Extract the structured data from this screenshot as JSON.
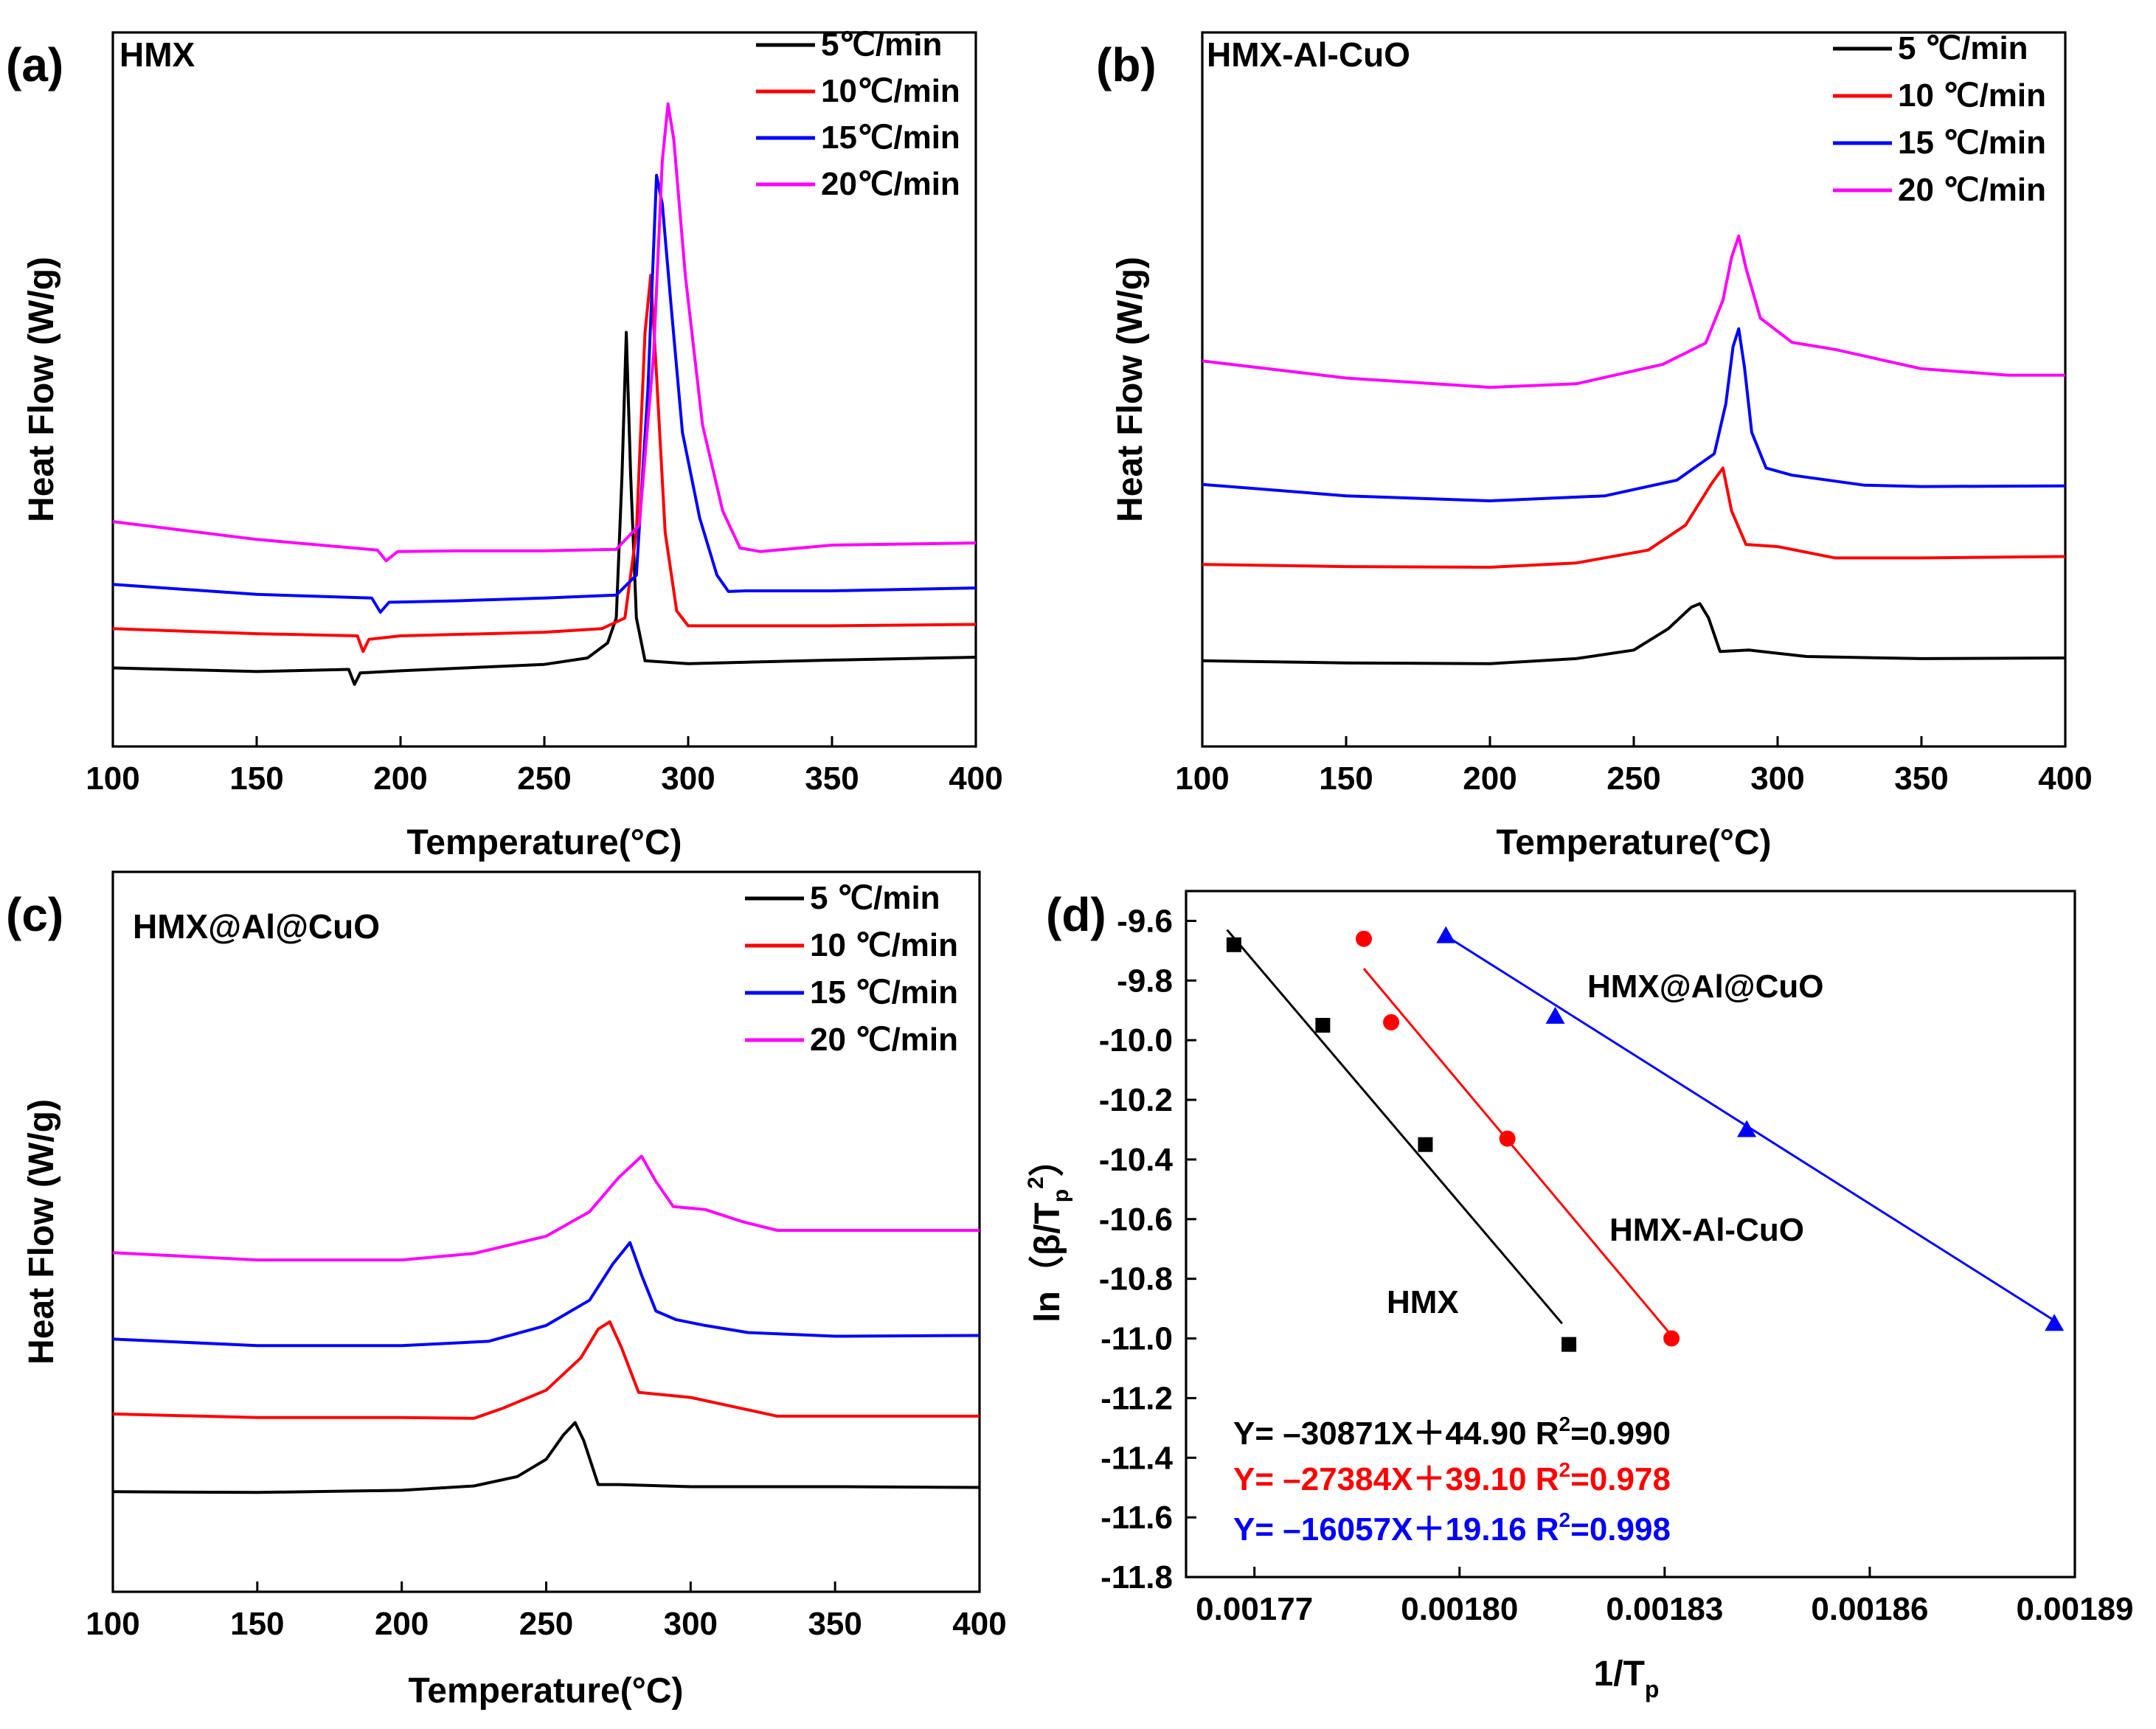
{
  "chart_data": [
    {
      "panel": "(a)",
      "type": "line",
      "title": "HMX",
      "xlabel": "Temperature(°C)",
      "ylabel": "Heat Flow (W/g)",
      "xlim": [
        100,
        400
      ],
      "xticks": [
        100,
        150,
        200,
        250,
        300,
        350,
        400
      ],
      "ylim": [
        0,
        100
      ],
      "legend": "top-right",
      "series": [
        {
          "name": "5℃/min",
          "color": "#000000",
          "points": [
            [
              100,
              11
            ],
            [
              150,
              10.5
            ],
            [
              182,
              10.8
            ],
            [
              184,
              8.7
            ],
            [
              186,
              10.3
            ],
            [
              200,
              10.6
            ],
            [
              250,
              11.5
            ],
            [
              265,
              12.4
            ],
            [
              272,
              14.5
            ],
            [
              275,
              18
            ],
            [
              277,
              38
            ],
            [
              278.5,
              58
            ],
            [
              280,
              38
            ],
            [
              282,
              18
            ],
            [
              285,
              12
            ],
            [
              300,
              11.6
            ],
            [
              350,
              12.1
            ],
            [
              400,
              12.5
            ]
          ]
        },
        {
          "name": "10℃/min",
          "color": "#ff0000",
          "points": [
            [
              100,
              16.5
            ],
            [
              150,
              15.8
            ],
            [
              185,
              15.5
            ],
            [
              187,
              13.3
            ],
            [
              189,
              15
            ],
            [
              200,
              15.5
            ],
            [
              250,
              16
            ],
            [
              270,
              16.5
            ],
            [
              278,
              18
            ],
            [
              282,
              30
            ],
            [
              285,
              58
            ],
            [
              287,
              66
            ],
            [
              289,
              52
            ],
            [
              292,
              30
            ],
            [
              296,
              19
            ],
            [
              300,
              16.9
            ],
            [
              350,
              16.9
            ],
            [
              400,
              17.1
            ]
          ]
        },
        {
          "name": "15℃/min",
          "color": "#0000ff",
          "points": [
            [
              100,
              22.7
            ],
            [
              150,
              21.3
            ],
            [
              190,
              20.8
            ],
            [
              193,
              18.8
            ],
            [
              196,
              20.2
            ],
            [
              220,
              20.4
            ],
            [
              250,
              20.8
            ],
            [
              275,
              21.2
            ],
            [
              282,
              24
            ],
            [
              286,
              50
            ],
            [
              289,
              80
            ],
            [
              291,
              76
            ],
            [
              294,
              62
            ],
            [
              298,
              44
            ],
            [
              304,
              32
            ],
            [
              310,
              24
            ],
            [
              314,
              21.7
            ],
            [
              320,
              21.8
            ],
            [
              350,
              21.8
            ],
            [
              400,
              22.2
            ]
          ]
        },
        {
          "name": "20℃/min",
          "color": "#ff00ff",
          "points": [
            [
              100,
              31.5
            ],
            [
              150,
              29
            ],
            [
              192,
              27.5
            ],
            [
              195,
              26
            ],
            [
              199,
              27.3
            ],
            [
              220,
              27.4
            ],
            [
              250,
              27.4
            ],
            [
              275,
              27.6
            ],
            [
              283,
              31
            ],
            [
              288,
              55
            ],
            [
              291,
              82
            ],
            [
              293,
              90
            ],
            [
              295,
              85
            ],
            [
              299,
              66
            ],
            [
              305,
              45
            ],
            [
              312,
              33
            ],
            [
              318,
              27.8
            ],
            [
              325,
              27.3
            ],
            [
              350,
              28.2
            ],
            [
              400,
              28.5
            ]
          ]
        }
      ]
    },
    {
      "panel": "(b)",
      "type": "line",
      "title": "HMX-Al-CuO",
      "xlabel": "Temperature(°C)",
      "ylabel": "Heat Flow (W/g)",
      "xlim": [
        100,
        400
      ],
      "xticks": [
        100,
        150,
        200,
        250,
        300,
        350,
        400
      ],
      "ylim": [
        0,
        100
      ],
      "legend": "top-right",
      "series": [
        {
          "name": "5 ℃/min",
          "color": "#000000",
          "points": [
            [
              100,
              12
            ],
            [
              150,
              11.7
            ],
            [
              200,
              11.6
            ],
            [
              230,
              12.3
            ],
            [
              250,
              13.5
            ],
            [
              262,
              16.5
            ],
            [
              270,
              19.5
            ],
            [
              273,
              20
            ],
            [
              276,
              18
            ],
            [
              280,
              13.3
            ],
            [
              290,
              13.5
            ],
            [
              310,
              12.6
            ],
            [
              350,
              12.3
            ],
            [
              400,
              12.4
            ]
          ]
        },
        {
          "name": "10 ℃/min",
          "color": "#ff0000",
          "points": [
            [
              100,
              25.5
            ],
            [
              150,
              25.2
            ],
            [
              200,
              25.1
            ],
            [
              230,
              25.7
            ],
            [
              255,
              27.5
            ],
            [
              268,
              31
            ],
            [
              277,
              36.8
            ],
            [
              281,
              39
            ],
            [
              284,
              33
            ],
            [
              289,
              28.3
            ],
            [
              300,
              28
            ],
            [
              320,
              26.4
            ],
            [
              350,
              26.4
            ],
            [
              400,
              26.6
            ]
          ]
        },
        {
          "name": "15 ℃/min",
          "color": "#0000ff",
          "points": [
            [
              100,
              36.7
            ],
            [
              150,
              35.1
            ],
            [
              200,
              34.4
            ],
            [
              240,
              35.1
            ],
            [
              265,
              37.3
            ],
            [
              278,
              41
            ],
            [
              282,
              48
            ],
            [
              284.5,
              56
            ],
            [
              286.5,
              58.5
            ],
            [
              288.5,
              53
            ],
            [
              291,
              44
            ],
            [
              296,
              39
            ],
            [
              305,
              38
            ],
            [
              330,
              36.6
            ],
            [
              350,
              36.4
            ],
            [
              400,
              36.5
            ]
          ]
        },
        {
          "name": "20 ℃/min",
          "color": "#ff00ff",
          "points": [
            [
              100,
              54
            ],
            [
              150,
              51.6
            ],
            [
              200,
              50.3
            ],
            [
              230,
              50.8
            ],
            [
              260,
              53.5
            ],
            [
              275,
              56.5
            ],
            [
              281,
              62.5
            ],
            [
              284,
              68.5
            ],
            [
              286.5,
              71.5
            ],
            [
              289,
              67
            ],
            [
              294,
              60
            ],
            [
              305,
              56.6
            ],
            [
              320,
              55.6
            ],
            [
              350,
              52.9
            ],
            [
              380,
              52
            ],
            [
              400,
              52
            ]
          ]
        }
      ]
    },
    {
      "panel": "(c)",
      "type": "line",
      "title": "HMX@Al@CuO",
      "xlabel": "Temperature(°C)",
      "ylabel": "Heat Flow (W/g)",
      "xlim": [
        100,
        400
      ],
      "xticks": [
        100,
        150,
        200,
        250,
        300,
        350,
        400
      ],
      "ylim": [
        0,
        100
      ],
      "legend": "top-right",
      "series": [
        {
          "name": "5 ℃/min",
          "color": "#000000",
          "points": [
            [
              100,
              13.9
            ],
            [
              150,
              13.8
            ],
            [
              200,
              14.1
            ],
            [
              225,
              14.7
            ],
            [
              240,
              16
            ],
            [
              250,
              18.4
            ],
            [
              256,
              21.8
            ],
            [
              260,
              23.5
            ],
            [
              263,
              21
            ],
            [
              268,
              14.9
            ],
            [
              275,
              14.9
            ],
            [
              300,
              14.6
            ],
            [
              350,
              14.6
            ],
            [
              400,
              14.5
            ]
          ]
        },
        {
          "name": "10 ℃/min",
          "color": "#ff0000",
          "points": [
            [
              100,
              24.7
            ],
            [
              150,
              24.2
            ],
            [
              200,
              24.2
            ],
            [
              225,
              24.1
            ],
            [
              235,
              25.5
            ],
            [
              250,
              28
            ],
            [
              262,
              32.5
            ],
            [
              268,
              36.5
            ],
            [
              272,
              37.5
            ],
            [
              276,
              34
            ],
            [
              282,
              27.7
            ],
            [
              300,
              27
            ],
            [
              330,
              24.4
            ],
            [
              350,
              24.4
            ],
            [
              400,
              24.4
            ]
          ]
        },
        {
          "name": "15 ℃/min",
          "color": "#0000ff",
          "points": [
            [
              100,
              35.1
            ],
            [
              150,
              34.2
            ],
            [
              200,
              34.2
            ],
            [
              230,
              34.8
            ],
            [
              250,
              37
            ],
            [
              265,
              40.5
            ],
            [
              273,
              45.5
            ],
            [
              279,
              48.5
            ],
            [
              283,
              44
            ],
            [
              288,
              39
            ],
            [
              295,
              37.8
            ],
            [
              305,
              37
            ],
            [
              320,
              36
            ],
            [
              350,
              35.5
            ],
            [
              400,
              35.6
            ]
          ]
        },
        {
          "name": "20 ℃/min",
          "color": "#ff00ff",
          "points": [
            [
              100,
              47.1
            ],
            [
              150,
              46.1
            ],
            [
              200,
              46.1
            ],
            [
              225,
              47
            ],
            [
              250,
              49.4
            ],
            [
              265,
              52.8
            ],
            [
              275,
              57.5
            ],
            [
              283,
              60.5
            ],
            [
              288,
              57
            ],
            [
              294,
              53.5
            ],
            [
              305,
              53.1
            ],
            [
              318,
              51.4
            ],
            [
              330,
              50.2
            ],
            [
              350,
              50.2
            ],
            [
              400,
              50.2
            ]
          ]
        }
      ]
    },
    {
      "panel": "(d)",
      "type": "scatter",
      "xlabel": "1/T",
      "xlabel_sub": "p",
      "ylabel": "ln（β/T",
      "ylabel_sub": "p",
      "ylabel_sup": "2",
      "ylabel_close": "）",
      "xlim": [
        0.00176,
        0.00189
      ],
      "ylim": [
        -11.8,
        -9.5
      ],
      "xticks": [
        0.00177,
        0.0018,
        0.00183,
        0.00186,
        0.00189
      ],
      "xtick_labels": [
        "0.00177",
        "0.00180",
        "0.00183",
        "0.00186",
        "0.00189"
      ],
      "yticks": [
        -9.6,
        -9.8,
        -10.0,
        -10.2,
        -10.4,
        -10.6,
        -10.8,
        -11.0,
        -11.2,
        -11.4,
        -11.6,
        -11.8
      ],
      "ytick_labels": [
        "-9.6",
        "-9.8",
        "-10.0",
        "-10.2",
        "-10.4",
        "-10.6",
        "-10.8",
        "-11.0",
        "-11.2",
        "-11.4",
        "-11.6",
        "-11.8"
      ],
      "series": [
        {
          "name": "HMX",
          "color": "#000000",
          "marker": "square",
          "x": [
            0.001767,
            0.00178,
            0.001795,
            0.001816
          ],
          "y": [
            -9.68,
            -9.95,
            -10.35,
            -11.02
          ],
          "fit": [
            [
              0.001766,
              -9.63
            ],
            [
              0.001815,
              -10.95
            ]
          ]
        },
        {
          "name": "HMX-Al-CuO",
          "color": "#ff0000",
          "marker": "circle",
          "x": [
            0.001786,
            0.00179,
            0.001807,
            0.001831
          ],
          "y": [
            -9.66,
            -9.94,
            -10.33,
            -11.0
          ],
          "fit": [
            [
              0.001786,
              -9.76
            ],
            [
              0.001831,
              -10.99
            ]
          ]
        },
        {
          "name": "HMX@Al@CuO",
          "color": "#0000ff",
          "marker": "triangle",
          "x": [
            0.001798,
            0.001814,
            0.001842,
            0.001887
          ],
          "y": [
            -9.65,
            -9.92,
            -10.3,
            -10.95
          ],
          "fit": [
            [
              0.001798,
              -9.65
            ],
            [
              0.001887,
              -10.94
            ]
          ]
        }
      ],
      "annotations": [
        {
          "text": "HMX@Al@CuO",
          "color": "#0000ff"
        },
        {
          "text": "HMX-Al-CuO",
          "color": "#ff0000"
        },
        {
          "text": "HMX",
          "color": "#000000"
        }
      ],
      "equations": [
        {
          "lhs": "Y= –30871X＋44.90 R",
          "sup": "2",
          "rhs": "=0.990",
          "color": "#000000"
        },
        {
          "lhs": "Y= –27384X＋39.10 R",
          "sup": "2",
          "rhs": "=0.978",
          "color": "#ff0000"
        },
        {
          "lhs": "Y= –16057X＋19.16 R",
          "sup": "2",
          "rhs": "=0.998",
          "color": "#0000ff"
        }
      ]
    }
  ]
}
